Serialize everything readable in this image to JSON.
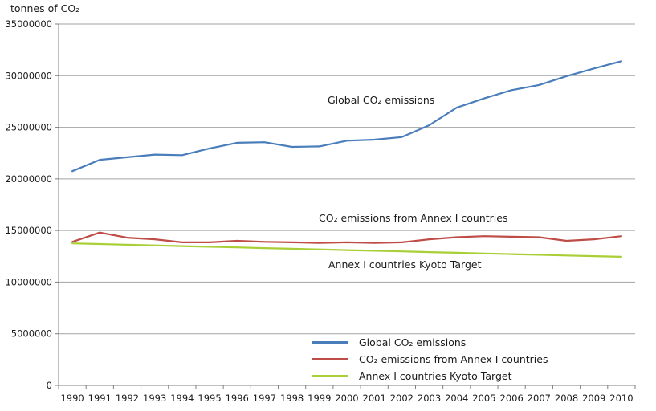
{
  "title": "tonnes of CO₂",
  "annotations": {
    "global": "Global CO₂ emissions",
    "annex": "CO₂ emissions from Annex I countries",
    "kyoto": "Annex I countries Kyoto Target"
  },
  "chart_data": {
    "type": "line",
    "title": "",
    "ylabel": "tonnes of CO₂",
    "xlabel": "",
    "ylim": [
      0,
      35000000
    ],
    "y_ticks": [
      0,
      5000000,
      10000000,
      15000000,
      20000000,
      25000000,
      30000000,
      35000000
    ],
    "x": [
      1990,
      1991,
      1992,
      1993,
      1994,
      1995,
      1996,
      1997,
      1998,
      1999,
      2000,
      2001,
      2002,
      2003,
      2004,
      2005,
      2006,
      2007,
      2008,
      2009,
      2010
    ],
    "grid": "horizontal",
    "legend_position": "inside-bottom-right",
    "axis_color": "#7f7f7f",
    "grid_color": "#a3a3a3",
    "text_color": "#1a1a1a",
    "series": [
      {
        "name": "Global CO₂ emissions",
        "color": "#4a7ebb",
        "values": [
          20750000,
          21850000,
          22100000,
          22350000,
          22300000,
          22950000,
          23500000,
          23550000,
          23100000,
          23150000,
          23700000,
          23800000,
          24050000,
          25200000,
          26900000,
          27800000,
          28600000,
          29100000,
          29950000,
          30700000,
          31400000
        ]
      },
      {
        "name": "CO₂ emissions from Annex I countries",
        "color": "#bf4d47",
        "values": [
          13900000,
          14800000,
          14300000,
          14150000,
          13850000,
          13850000,
          14000000,
          13900000,
          13850000,
          13800000,
          13850000,
          13800000,
          13850000,
          14150000,
          14350000,
          14450000,
          14400000,
          14350000,
          14000000,
          14150000,
          14450000
        ]
      },
      {
        "name": "Annex I countries Kyoto Target",
        "color": "#a8cf35",
        "values": [
          13750000,
          13685000,
          13620000,
          13555000,
          13490000,
          13425000,
          13360000,
          13295000,
          13230000,
          13165000,
          13100000,
          13035000,
          12970000,
          12905000,
          12840000,
          12775000,
          12710000,
          12645000,
          12580000,
          12515000,
          12450000
        ]
      }
    ]
  }
}
